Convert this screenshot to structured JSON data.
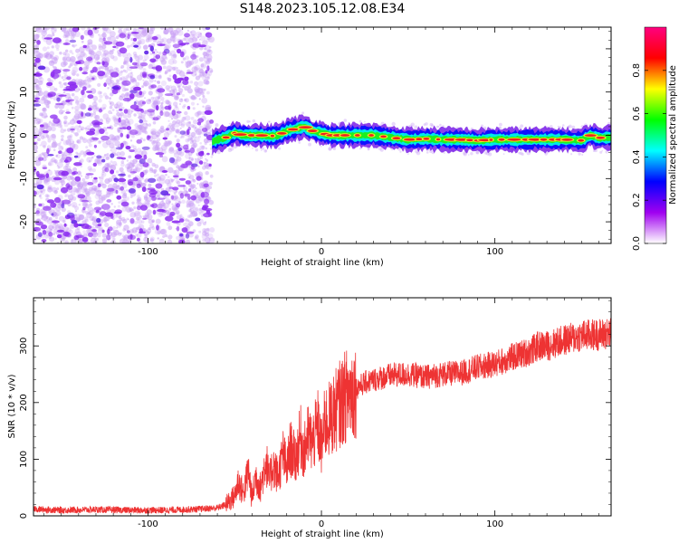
{
  "title": "S148.2023.105.12.08.E34",
  "chart_data": [
    {
      "type": "heatmap",
      "panel": "spectrogram",
      "xlabel": "Height of straight line (km)",
      "ylabel": "Frequency (Hz)",
      "xlim": [
        -166,
        167
      ],
      "ylim": [
        -25,
        25
      ],
      "x_ticks": [
        -100,
        0,
        100
      ],
      "x_tick_labels": [
        "-100",
        "0",
        "100"
      ],
      "y_ticks": [
        -20,
        -10,
        0,
        10,
        20
      ],
      "y_tick_labels": [
        "-20",
        "-10",
        "0",
        "10",
        "20"
      ],
      "noise_region_x": [
        -166,
        -63
      ],
      "signal_region_x": [
        -63,
        167
      ],
      "signal_trace": {
        "x": [
          -63,
          -60,
          -55,
          -50,
          -45,
          -40,
          -35,
          -30,
          -25,
          -20,
          -15,
          -10,
          -5,
          0,
          5,
          10,
          15,
          20,
          25,
          30,
          40,
          50,
          60,
          70,
          80,
          90,
          100,
          110,
          120,
          130,
          140,
          150,
          155,
          160,
          167
        ],
        "y": [
          -1.5,
          -1,
          -0.5,
          0.5,
          0,
          0,
          0,
          -0.2,
          0,
          1,
          1.5,
          2,
          1,
          0.5,
          0,
          0,
          0,
          0,
          0,
          0,
          -0.5,
          -1,
          -0.8,
          -1,
          -1,
          -1.2,
          -1,
          -1,
          -1,
          -1,
          -1,
          -1.2,
          0,
          -0.6,
          -0.5
        ]
      },
      "colorbar": {
        "label": "Normalized spectral amplitude",
        "range": [
          0,
          1
        ],
        "ticks": [
          0.0,
          0.2,
          0.4,
          0.6,
          0.8
        ],
        "tick_labels": [
          "0.0",
          "0.2",
          "0.4",
          "0.6",
          "0.8"
        ],
        "colors": [
          "#ffffff",
          "#a000f0",
          "#0000ff",
          "#00ffff",
          "#00ff00",
          "#ffff00",
          "#ff0000",
          "#ff0080"
        ]
      }
    },
    {
      "type": "line",
      "panel": "snr",
      "xlabel": "Height of straight line (km)",
      "ylabel": "SNR (10 * v/v)",
      "xlim": [
        -166,
        167
      ],
      "ylim": [
        0,
        385
      ],
      "x_ticks": [
        -100,
        0,
        100
      ],
      "x_tick_labels": [
        "-100",
        "0",
        "100"
      ],
      "y_ticks": [
        0,
        100,
        200,
        300
      ],
      "y_tick_labels": [
        "0",
        "100",
        "200",
        "300"
      ],
      "color": "#ee3333",
      "series": [
        {
          "x": [
            -166,
            -150,
            -130,
            -110,
            -90,
            -70,
            -60,
            -55,
            -50,
            -48,
            -45,
            -42,
            -40,
            -38,
            -35,
            -32,
            -30,
            -28,
            -25,
            -22,
            -20,
            -18,
            -15,
            -12,
            -10,
            -8,
            -5,
            -2,
            0,
            2,
            5,
            8,
            10,
            15,
            20,
            25,
            30,
            40,
            50,
            60,
            70,
            80,
            90,
            100,
            110,
            120,
            125,
            130,
            140,
            150,
            160,
            167
          ],
          "y": [
            12,
            10,
            11,
            10,
            10,
            12,
            14,
            20,
            35,
            60,
            40,
            80,
            30,
            70,
            50,
            100,
            60,
            90,
            70,
            110,
            80,
            120,
            100,
            140,
            110,
            140,
            130,
            160,
            120,
            165,
            170,
            185,
            195,
            215,
            225,
            235,
            240,
            248,
            250,
            245,
            250,
            252,
            262,
            268,
            280,
            290,
            300,
            300,
            310,
            318,
            320,
            322
          ]
        }
      ]
    }
  ]
}
